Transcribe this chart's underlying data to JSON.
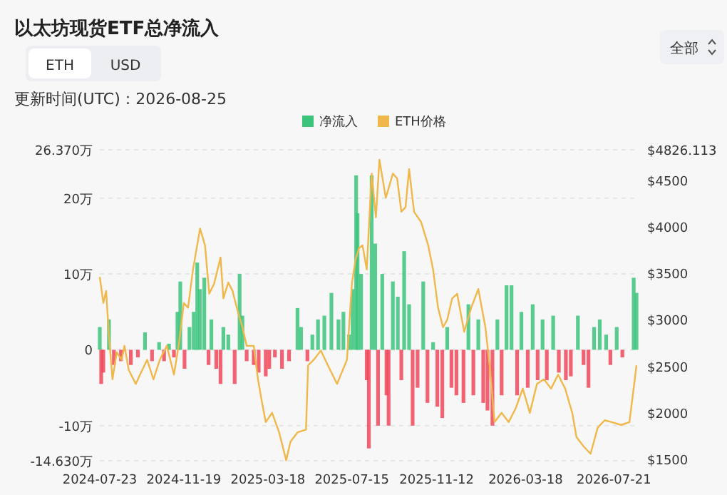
{
  "chart_data": {
    "type": "bar",
    "title": "以太坊现货ETF总净流入",
    "annotations": [
      "ETH",
      "USD",
      "全部",
      "更新时间(UTC) : 2026-08-25"
    ],
    "xlim": [
      "2024-07-23",
      "2026-08-25"
    ],
    "xticks": [
      "2024-07-23",
      "2024-11-19",
      "2025-03-18",
      "2025-07-15",
      "2025-11-12",
      "2026-03-18",
      "2026-07-21"
    ],
    "ylim": [
      -14.63,
      26.37
    ],
    "yticks": [
      {
        "value": -14.63,
        "label": "-14.630万"
      },
      {
        "value": -10,
        "label": "-10万"
      },
      0,
      {
        "value": 10,
        "label": "10万"
      },
      {
        "value": 20,
        "label": "20万"
      },
      {
        "value": 26.37,
        "label": "26.370万"
      }
    ],
    "y2lim": [
      1485,
      4826.113
    ],
    "y2ticks": [
      {
        "value": 1500,
        "label": "$1500"
      },
      {
        "value": 2000,
        "label": "$2000"
      },
      {
        "value": 2500,
        "label": "$2500"
      },
      {
        "value": 3000,
        "label": "$3000"
      },
      {
        "value": 3500,
        "label": "$3500"
      },
      {
        "value": 4000,
        "label": "$4000"
      },
      {
        "value": 4500,
        "label": "$4500"
      },
      {
        "value": 4826.113,
        "label": "$4826.113"
      }
    ],
    "grid": "y",
    "legend": "top",
    "series": [
      {
        "name": "净流入",
        "color": "#3cc47c",
        "x": [
          "2024-07-23",
          "2024-07-25",
          "2024-07-28",
          "2024-08-05",
          "2024-08-12",
          "2024-08-22",
          "2024-09-05",
          "2024-09-15",
          "2024-09-25",
          "2024-10-05",
          "2024-10-15",
          "2024-10-22",
          "2024-10-29",
          "2024-11-05",
          "2024-11-10",
          "2024-11-14",
          "2024-11-20",
          "2024-11-27",
          "2024-12-03",
          "2024-12-08",
          "2024-12-12",
          "2024-12-18",
          "2024-12-24",
          "2024-12-28",
          "2025-01-04",
          "2025-01-10",
          "2025-01-14",
          "2025-01-21",
          "2025-01-30",
          "2025-02-06",
          "2025-02-10",
          "2025-02-16",
          "2025-02-26",
          "2025-03-05",
          "2025-03-15",
          "2025-03-20",
          "2025-03-28",
          "2025-04-07",
          "2025-04-17",
          "2025-04-29",
          "2025-05-04",
          "2025-05-13",
          "2025-05-20",
          "2025-05-28",
          "2025-06-06",
          "2025-06-16",
          "2025-06-26",
          "2025-07-03",
          "2025-07-11",
          "2025-07-16",
          "2025-07-21",
          "2025-07-23",
          "2025-07-28",
          "2025-08-05",
          "2025-08-08",
          "2025-08-12",
          "2025-08-17",
          "2025-08-21",
          "2025-08-27",
          "2025-09-02",
          "2025-09-05",
          "2025-09-11",
          "2025-09-18",
          "2025-09-23",
          "2025-09-27",
          "2025-10-04",
          "2025-10-09",
          "2025-10-16",
          "2025-10-24",
          "2025-10-30",
          "2025-11-07",
          "2025-11-13",
          "2025-11-20",
          "2025-11-27",
          "2025-12-03",
          "2025-12-10",
          "2025-12-20",
          "2025-12-27",
          "2026-01-03",
          "2026-01-10",
          "2026-01-17",
          "2026-01-23",
          "2026-01-30",
          "2026-02-06",
          "2026-02-12",
          "2026-02-19",
          "2026-02-26",
          "2026-03-06",
          "2026-03-12",
          "2026-03-21",
          "2026-03-28",
          "2026-04-04",
          "2026-04-11",
          "2026-04-17",
          "2026-04-26",
          "2026-05-04",
          "2026-05-14",
          "2026-05-21",
          "2026-05-31",
          "2026-06-08",
          "2026-06-15",
          "2026-06-23",
          "2026-07-01",
          "2026-07-10",
          "2026-07-16",
          "2026-07-25",
          "2026-08-02",
          "2026-08-18",
          "2026-08-22"
        ],
        "values": [
          3,
          -4.5,
          -3,
          4,
          -2,
          -1.5,
          -2,
          -1,
          2.3,
          -1.5,
          1,
          -1.5,
          0.8,
          -1,
          5,
          9,
          -2.5,
          3,
          5,
          11.5,
          8,
          9.5,
          -2,
          4,
          -2.5,
          -4.5,
          3,
          2,
          -4.5,
          10,
          4.5,
          -1.5,
          -2,
          -3,
          -3.5,
          -2.5,
          -1,
          -2.5,
          -1.5,
          5.5,
          3,
          -1.5,
          2,
          4,
          4.5,
          7.5,
          4,
          5,
          2,
          8,
          23,
          18,
          10,
          -4,
          -13,
          23,
          14,
          -10,
          10,
          -6,
          -10,
          9,
          7,
          -4,
          13,
          6,
          -10,
          -5,
          9,
          -7,
          1,
          -7.5,
          -9,
          3,
          -5,
          -6,
          -7,
          6,
          -6,
          4,
          -7,
          -8,
          -10,
          4,
          -6,
          8.5,
          8.5,
          -6,
          5,
          -5,
          6,
          -4,
          4,
          -4,
          4.5,
          -3,
          -4,
          -3.5,
          4.5,
          -2,
          -5,
          3,
          4,
          2,
          -2,
          3,
          -1,
          9.5,
          7.5
        ],
        "colors": [
          "#3cc47c",
          "#f0485a",
          "#f0485a",
          "#3cc47c",
          "#f0485a",
          "#f0485a",
          "#f0485a",
          "#f0485a",
          "#3cc47c",
          "#f0485a",
          "#3cc47c",
          "#f0485a",
          "#3cc47c",
          "#f0485a",
          "#3cc47c",
          "#3cc47c",
          "#f0485a",
          "#3cc47c",
          "#3cc47c",
          "#3cc47c",
          "#3cc47c",
          "#3cc47c",
          "#f0485a",
          "#3cc47c",
          "#f0485a",
          "#f0485a",
          "#3cc47c",
          "#3cc47c",
          "#f0485a",
          "#3cc47c",
          "#3cc47c",
          "#f0485a",
          "#f0485a",
          "#f0485a",
          "#f0485a",
          "#f0485a",
          "#f0485a",
          "#f0485a",
          "#f0485a",
          "#3cc47c",
          "#3cc47c",
          "#f0485a",
          "#3cc47c",
          "#3cc47c",
          "#3cc47c",
          "#3cc47c",
          "#3cc47c",
          "#3cc47c",
          "#3cc47c",
          "#3cc47c",
          "#3cc47c",
          "#3cc47c",
          "#3cc47c",
          "#f0485a",
          "#f0485a",
          "#3cc47c",
          "#3cc47c",
          "#f0485a",
          "#3cc47c",
          "#f0485a",
          "#f0485a",
          "#3cc47c",
          "#3cc47c",
          "#f0485a",
          "#3cc47c",
          "#3cc47c",
          "#f0485a",
          "#f0485a",
          "#3cc47c",
          "#f0485a",
          "#3cc47c",
          "#f0485a",
          "#f0485a",
          "#3cc47c",
          "#f0485a",
          "#f0485a",
          "#f0485a",
          "#3cc47c",
          "#f0485a",
          "#3cc47c",
          "#f0485a",
          "#f0485a",
          "#f0485a",
          "#3cc47c",
          "#f0485a",
          "#3cc47c",
          "#3cc47c",
          "#f0485a",
          "#3cc47c",
          "#f0485a",
          "#3cc47c",
          "#f0485a",
          "#3cc47c",
          "#f0485a",
          "#3cc47c",
          "#f0485a",
          "#f0485a",
          "#f0485a",
          "#3cc47c",
          "#f0485a",
          "#f0485a",
          "#3cc47c",
          "#3cc47c",
          "#3cc47c",
          "#f0485a",
          "#3cc47c",
          "#f0485a",
          "#3cc47c",
          "#3cc47c"
        ]
      },
      {
        "name": "ETH价格",
        "type": "line",
        "axis": "y2",
        "color": "#f0b84a",
        "x": [
          "2024-07-23",
          "2024-07-28",
          "2024-08-01",
          "2024-08-05",
          "2024-08-10",
          "2024-08-16",
          "2024-08-23",
          "2024-08-27",
          "2024-09-02",
          "2024-09-12",
          "2024-09-18",
          "2024-09-28",
          "2024-10-07",
          "2024-10-16",
          "2024-10-26",
          "2024-11-05",
          "2024-11-12",
          "2024-11-19",
          "2024-11-25",
          "2024-12-02",
          "2024-12-12",
          "2024-12-19",
          "2024-12-25",
          "2025-01-01",
          "2025-01-10",
          "2025-01-14",
          "2025-01-21",
          "2025-01-27",
          "2025-02-03",
          "2025-02-10",
          "2025-02-16",
          "2025-02-26",
          "2025-03-04",
          "2025-03-10",
          "2025-03-15",
          "2025-03-24",
          "2025-04-03",
          "2025-04-13",
          "2025-04-19",
          "2025-04-29",
          "2025-05-11",
          "2025-05-14",
          "2025-05-22",
          "2025-06-01",
          "2025-06-11",
          "2025-06-24",
          "2025-07-08",
          "2025-07-15",
          "2025-07-20",
          "2025-07-25",
          "2025-07-30",
          "2025-08-05",
          "2025-08-12",
          "2025-08-18",
          "2025-08-23",
          "2025-09-01",
          "2025-09-11",
          "2025-09-17",
          "2025-09-23",
          "2025-09-29",
          "2025-10-04",
          "2025-10-11",
          "2025-10-21",
          "2025-10-31",
          "2025-11-07",
          "2025-11-14",
          "2025-11-21",
          "2025-11-27",
          "2025-12-04",
          "2025-12-11",
          "2025-12-21",
          "2025-12-31",
          "2026-01-10",
          "2026-01-20",
          "2026-01-26",
          "2026-02-02",
          "2026-02-12",
          "2026-02-22",
          "2026-03-04",
          "2026-03-14",
          "2026-03-24",
          "2026-04-03",
          "2026-04-13",
          "2026-04-23",
          "2026-05-03",
          "2026-05-13",
          "2026-05-23",
          "2026-05-29",
          "2026-06-08",
          "2026-06-18",
          "2026-06-28",
          "2026-07-08",
          "2026-07-18",
          "2026-07-31",
          "2026-08-12",
          "2026-08-22"
        ],
        "values": [
          3460,
          3180,
          3310,
          2820,
          2360,
          2650,
          2570,
          2720,
          2460,
          2310,
          2410,
          2570,
          2360,
          2570,
          2720,
          2410,
          2740,
          3180,
          3130,
          3540,
          3980,
          3800,
          3280,
          3390,
          3670,
          3230,
          3400,
          3310,
          3100,
          2920,
          2720,
          2720,
          2360,
          2100,
          1900,
          2000,
          1790,
          1490,
          1690,
          1790,
          1820,
          2510,
          2570,
          2670,
          2510,
          2310,
          2570,
          3390,
          3640,
          3770,
          3800,
          3540,
          4570,
          4100,
          4720,
          4310,
          4570,
          4520,
          4160,
          4210,
          4620,
          4160,
          4050,
          3800,
          3540,
          3130,
          2920,
          3000,
          3230,
          3280,
          2870,
          3130,
          3330,
          2920,
          2510,
          1900,
          2000,
          1900,
          2050,
          2260,
          2000,
          2310,
          2360,
          2260,
          2410,
          2260,
          2000,
          1740,
          1640,
          1560,
          1840,
          1920,
          1900,
          1870,
          1900,
          2510
        ]
      }
    ]
  }
}
